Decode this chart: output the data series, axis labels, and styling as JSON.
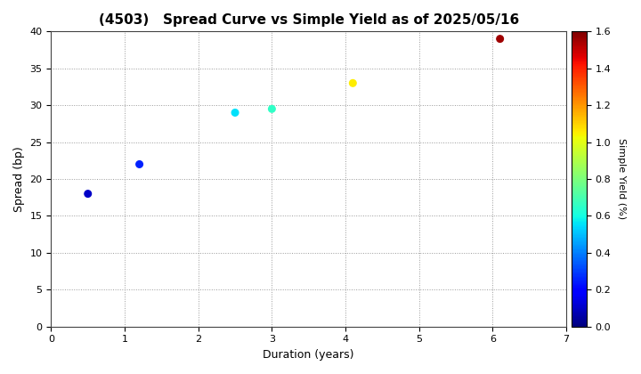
{
  "title": "(4503)   Spread Curve vs Simple Yield as of 2025/05/16",
  "xlabel": "Duration (years)",
  "ylabel": "Spread (bp)",
  "colorbar_label": "Simple Yield (%)",
  "xlim": [
    0,
    7
  ],
  "ylim": [
    0,
    40
  ],
  "xticks": [
    0,
    1,
    2,
    3,
    4,
    5,
    6,
    7
  ],
  "yticks": [
    0,
    5,
    10,
    15,
    20,
    25,
    30,
    35,
    40
  ],
  "points": [
    {
      "duration": 0.5,
      "spread": 18.0,
      "simple_yield": 0.1
    },
    {
      "duration": 1.2,
      "spread": 22.0,
      "simple_yield": 0.25
    },
    {
      "duration": 2.5,
      "spread": 29.0,
      "simple_yield": 0.55
    },
    {
      "duration": 3.0,
      "spread": 29.5,
      "simple_yield": 0.65
    },
    {
      "duration": 4.1,
      "spread": 33.0,
      "simple_yield": 1.05
    },
    {
      "duration": 6.1,
      "spread": 39.0,
      "simple_yield": 1.55
    }
  ],
  "colormap": "jet",
  "vmin": 0.0,
  "vmax": 1.6,
  "colorbar_ticks": [
    0.0,
    0.2,
    0.4,
    0.6,
    0.8,
    1.0,
    1.2,
    1.4,
    1.6
  ],
  "marker_size": 30,
  "background_color": "#ffffff",
  "grid_color": "#999999",
  "grid_linestyle": ":",
  "title_fontsize": 11,
  "axis_label_fontsize": 9,
  "tick_fontsize": 8,
  "colorbar_fontsize": 8
}
